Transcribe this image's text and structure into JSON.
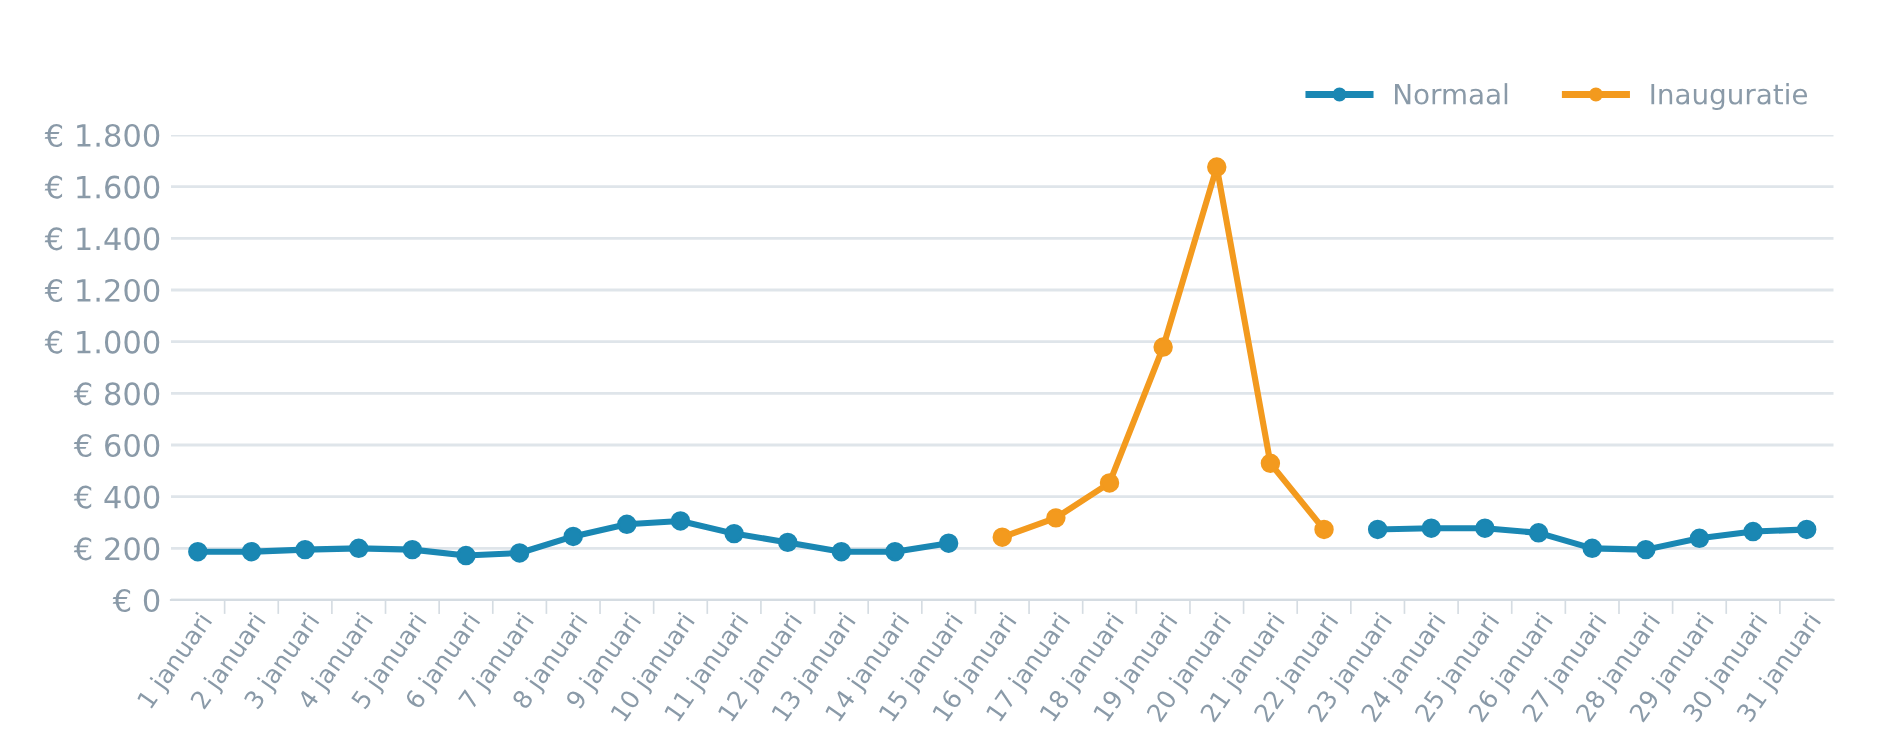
{
  "chart_data": {
    "type": "line",
    "categories": [
      "1 januari",
      "2 januari",
      "3 januari",
      "4 januari",
      "5 januari",
      "6 januari",
      "7 januari",
      "8 januari",
      "9 januari",
      "10 januari",
      "11 januari",
      "12 januari",
      "13 januari",
      "14 januari",
      "15 januari",
      "16 januari",
      "17 januari",
      "18 januari",
      "19 januari",
      "20 januari",
      "21 januari",
      "22 januari",
      "23 januari",
      "24 januari",
      "25 januari",
      "26 januari",
      "27 januari",
      "28 januari",
      "29 januari",
      "30 januari",
      "31 januari"
    ],
    "series": [
      {
        "name": "Normaal",
        "color": "#1a87b3",
        "values": [
          187,
          187,
          195,
          200,
          195,
          172,
          182,
          246,
          293,
          306,
          257,
          223,
          187,
          187,
          220,
          null,
          null,
          null,
          null,
          null,
          null,
          null,
          273,
          278,
          278,
          260,
          200,
          195,
          239,
          265,
          273
        ]
      },
      {
        "name": "Inauguratie",
        "color": "#f39a1e",
        "values": [
          null,
          null,
          null,
          null,
          null,
          null,
          null,
          null,
          null,
          null,
          null,
          null,
          null,
          null,
          null,
          243,
          318,
          453,
          979,
          1676,
          529,
          273,
          null,
          null,
          null,
          null,
          null,
          null,
          null,
          null,
          null
        ]
      }
    ],
    "ylim": [
      0,
      1800
    ],
    "yticks": [
      {
        "value": 0,
        "label": "€ 0"
      },
      {
        "value": 200,
        "label": "€ 200"
      },
      {
        "value": 400,
        "label": "€ 400"
      },
      {
        "value": 600,
        "label": "€ 600"
      },
      {
        "value": 800,
        "label": "€ 800"
      },
      {
        "value": 1000,
        "label": "€ 1.000"
      },
      {
        "value": 1200,
        "label": "€ 1.200"
      },
      {
        "value": 1400,
        "label": "€ 1.400"
      },
      {
        "value": 1600,
        "label": "€ 1.600"
      },
      {
        "value": 1800,
        "label": "€ 1.800"
      }
    ],
    "grid": "y",
    "legend": "top right",
    "marker": "circle",
    "line_style": "solid"
  }
}
